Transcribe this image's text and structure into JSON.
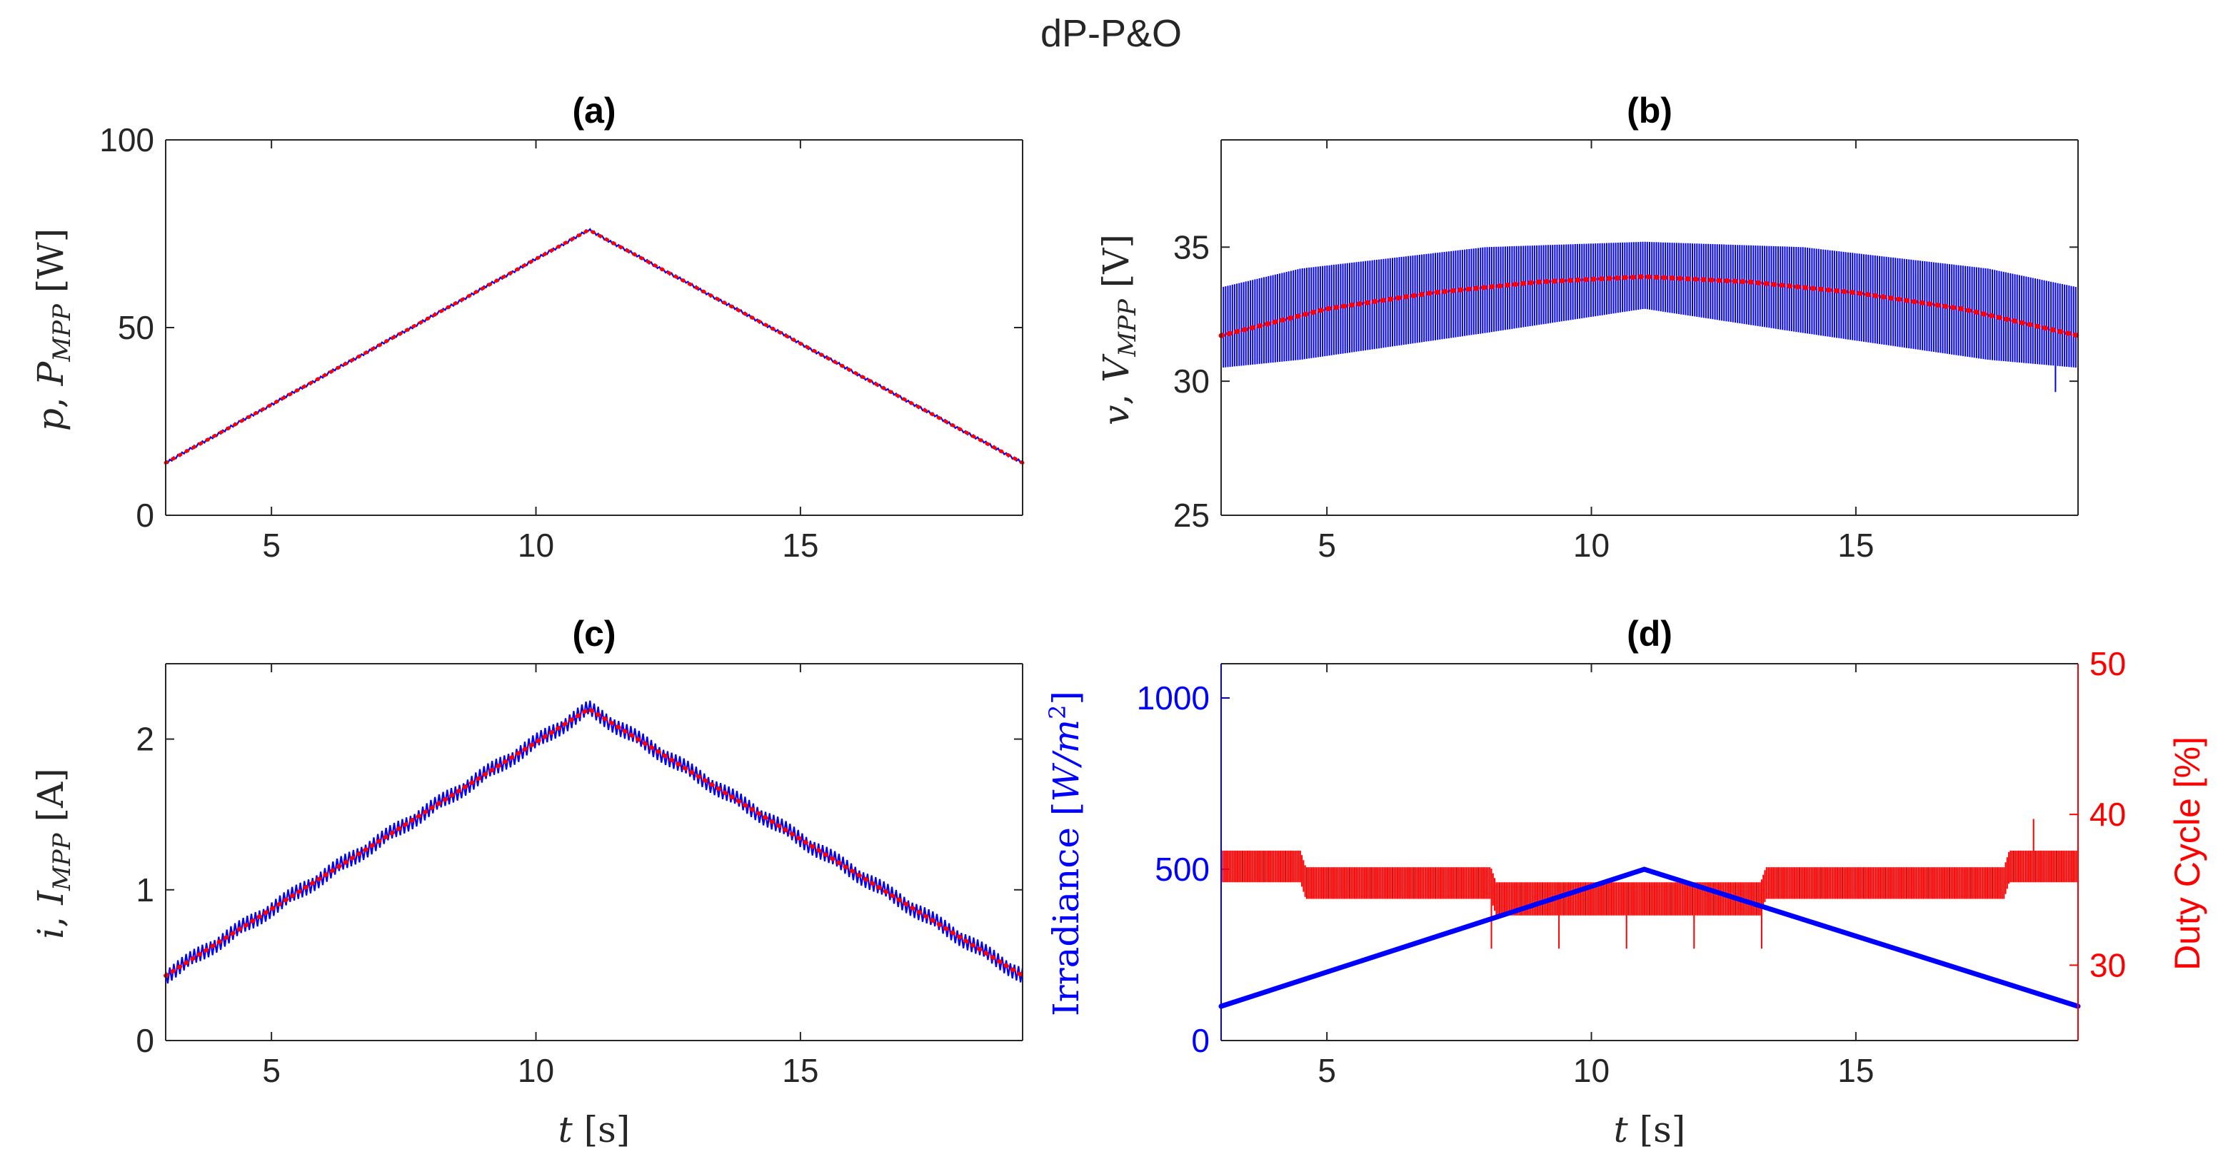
{
  "figure": {
    "title": "dP-P&O"
  },
  "chart_data": [
    {
      "id": "a",
      "title": "(a)",
      "type": "line",
      "ylabel": "p, P_MPP [W]",
      "ylabel_parts": {
        "sym": "p",
        "comma": ", ",
        "big": "P",
        "sub": "MPP",
        "unit": " [W]"
      },
      "xlabel": "",
      "xlim": [
        3,
        19.2
      ],
      "ylim": [
        0,
        100
      ],
      "xticks": [
        "5",
        "10",
        "15"
      ],
      "yticks": [
        "0",
        "50",
        "100"
      ],
      "series": [
        {
          "name": "p",
          "color": "#0000ff",
          "style": "solid",
          "x": [
            3,
            11,
            19.2
          ],
          "y": [
            14,
            76,
            14
          ],
          "ripple": 0.4
        },
        {
          "name": "P_MPP",
          "color": "#ff0000",
          "style": "dotted",
          "x": [
            3,
            11,
            19.2
          ],
          "y": [
            14,
            76,
            14
          ]
        }
      ]
    },
    {
      "id": "b",
      "title": "(b)",
      "type": "line",
      "ylabel": "v, V_MPP [V]",
      "ylabel_parts": {
        "sym": "v",
        "comma": ", ",
        "big": "V",
        "sub": "MPP",
        "unit": " [V]"
      },
      "xlabel": "",
      "xlim": [
        3,
        19.2
      ],
      "ylim": [
        25,
        39
      ],
      "xticks": [
        "5",
        "10",
        "15"
      ],
      "yticks": [
        "25",
        "30",
        "35"
      ],
      "series": [
        {
          "name": "v",
          "color": "#0000ff",
          "style": "band",
          "x": [
            3,
            4.5,
            8,
            11,
            14,
            17.5,
            19.2
          ],
          "y_low": [
            30.5,
            30.8,
            31.8,
            32.7,
            31.8,
            30.8,
            30.5
          ],
          "y_high": [
            33.5,
            34.2,
            35.0,
            35.2,
            35.0,
            34.2,
            33.5
          ],
          "spike_low": 29.6
        },
        {
          "name": "V_MPP",
          "color": "#ff0000",
          "style": "dotted",
          "x": [
            3,
            5,
            7,
            9,
            11,
            13,
            15,
            17,
            19.2
          ],
          "y": [
            31.7,
            32.7,
            33.3,
            33.7,
            33.9,
            33.7,
            33.3,
            32.7,
            31.7
          ]
        }
      ]
    },
    {
      "id": "c",
      "title": "(c)",
      "type": "line",
      "ylabel": "i, I_MPP [A]",
      "ylabel_parts": {
        "sym": "i",
        "comma": ", ",
        "big": "I",
        "sub": "MPP",
        "unit": " [A]"
      },
      "xlabel": "t [s]",
      "xlabel_parts": {
        "sym": "t",
        "unit": " [s]"
      },
      "xlim": [
        3,
        19.2
      ],
      "ylim": [
        0,
        2.5
      ],
      "xticks": [
        "5",
        "10",
        "15"
      ],
      "yticks": [
        "0",
        "1",
        "2"
      ],
      "series": [
        {
          "name": "i",
          "color": "#0000ff",
          "style": "solid",
          "x": [
            3,
            11,
            19.2
          ],
          "y": [
            0.43,
            2.2,
            0.43
          ],
          "ripple": 0.06
        },
        {
          "name": "I_MPP",
          "color": "#ff0000",
          "style": "dotted",
          "x": [
            3,
            11,
            19.2
          ],
          "y": [
            0.43,
            2.2,
            0.43
          ]
        }
      ]
    },
    {
      "id": "d",
      "title": "(d)",
      "type": "line",
      "ylabel_left": "Irradiance [W/m^2]",
      "ylabel_left_parts": {
        "text": "Irradiance ",
        "unit_open": "[",
        "unit": "W/m",
        "sup": "2",
        "unit_close": "]"
      },
      "ylabel_right": "Duty Cycle [%]",
      "xlabel": "t [s]",
      "xlabel_parts": {
        "sym": "t",
        "unit": " [s]"
      },
      "xlim": [
        3,
        19.2
      ],
      "ylim_left": [
        0,
        1100
      ],
      "ylim_right": [
        25,
        50
      ],
      "xticks": [
        "5",
        "10",
        "15"
      ],
      "yticks_left": [
        "0",
        "500",
        "1000"
      ],
      "yticks_right": [
        "30",
        "40",
        "50"
      ],
      "left_color": "#0000ff",
      "right_color": "#ff0000",
      "series": [
        {
          "name": "Irradiance",
          "axis": "left",
          "color": "#0000ff",
          "style": "solid",
          "x": [
            3,
            11,
            19.2
          ],
          "y": [
            100,
            500,
            100
          ]
        },
        {
          "name": "Duty Cycle",
          "axis": "right",
          "color": "#ff0000",
          "style": "band",
          "x": [
            3,
            4.5,
            4.6,
            8.1,
            8.2,
            13.2,
            13.3,
            17.8,
            17.9,
            19.2
          ],
          "y_low": [
            35.5,
            35.5,
            34.4,
            34.4,
            33.3,
            33.3,
            34.4,
            34.4,
            35.5,
            35.5
          ],
          "y_high": [
            37.6,
            37.6,
            36.5,
            36.5,
            35.5,
            35.5,
            36.5,
            36.5,
            37.6,
            37.6
          ],
          "spikes_high": 39.7,
          "spikes_low": 31.1
        }
      ]
    }
  ]
}
